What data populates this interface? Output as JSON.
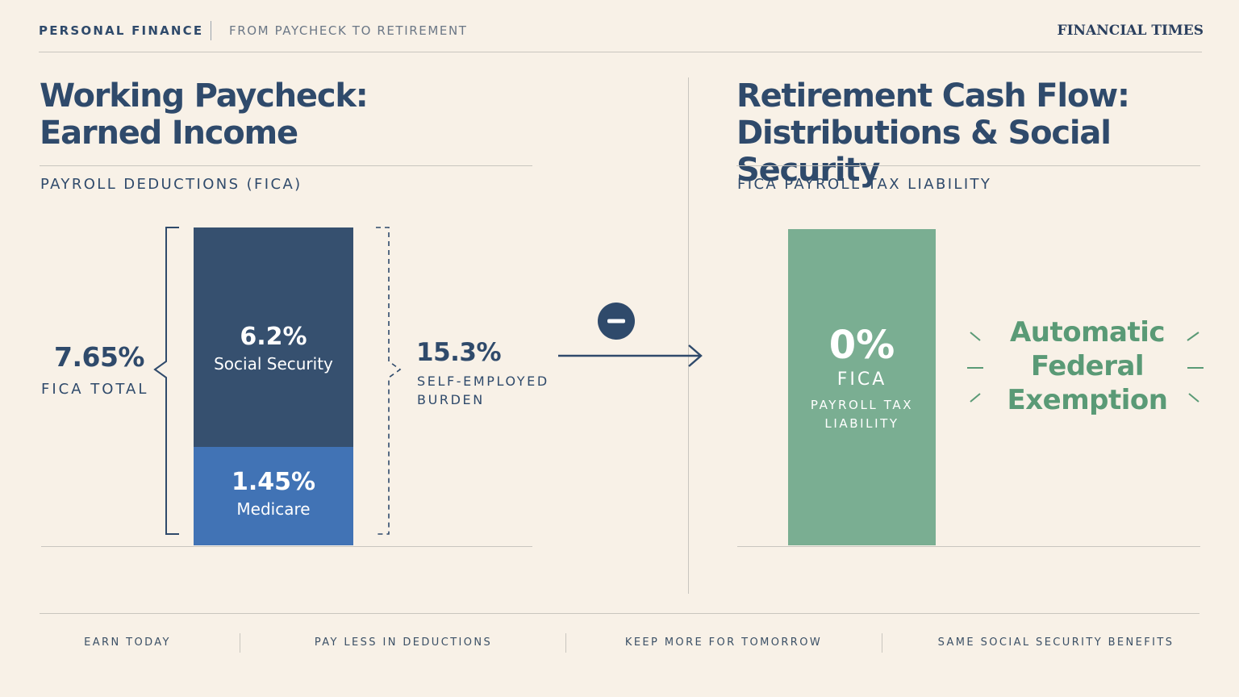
{
  "header": {
    "kicker": "PERSONAL FINANCE",
    "subkicker": "FROM PAYCHECK TO RETIREMENT",
    "brand": "FINANCIAL TIMES"
  },
  "left": {
    "title_line1": "Working Paycheck:",
    "title_line2": "Earned Income",
    "section": "PAYROLL DEDUCTIONS (FICA)",
    "total_value": "7.65%",
    "total_label": "FICA TOTAL",
    "self_employed_value": "15.3%",
    "self_employed_label_line1": "SELF-EMPLOYED",
    "self_employed_label_line2": "BURDEN"
  },
  "right": {
    "title_line1": "Retirement Cash Flow:",
    "title_line2": "Distributions & Social Security",
    "section": "FICA PAYROLL TAX LIABILITY",
    "bar_value": "0%",
    "bar_label": "FICA",
    "bar_sublabel_line1": "PAYROLL TAX",
    "bar_sublabel_line2": "LIABILITY",
    "callout_line1": "Automatic",
    "callout_line2": "Federal",
    "callout_line3": "Exemption"
  },
  "transition_icon": "minus-circle-icon",
  "footer": [
    "EARN TODAY",
    "PAY LESS IN DEDUCTIONS",
    "KEEP MORE FOR TOMORROW",
    "SAME SOCIAL SECURITY BENEFITS"
  ],
  "colors": {
    "background": "#f8f1e7",
    "navy": "#2f4a6b",
    "social_security": "#36506f",
    "medicare": "#4173b5",
    "green_bar": "#7aae92",
    "green_text": "#5a9a76"
  },
  "chart_data": [
    {
      "type": "bar",
      "stacked": true,
      "categories": [
        "Working Paycheck"
      ],
      "series": [
        {
          "name": "Social Security",
          "values": [
            6.2
          ],
          "label": "6.2%"
        },
        {
          "name": "Medicare",
          "values": [
            1.45
          ],
          "label": "1.45%"
        }
      ],
      "unit": "%"
    },
    {
      "type": "bar",
      "categories": [
        "Retirement"
      ],
      "series": [
        {
          "name": "FICA",
          "values": [
            0
          ],
          "label": "0%"
        }
      ],
      "unit": "%"
    }
  ]
}
